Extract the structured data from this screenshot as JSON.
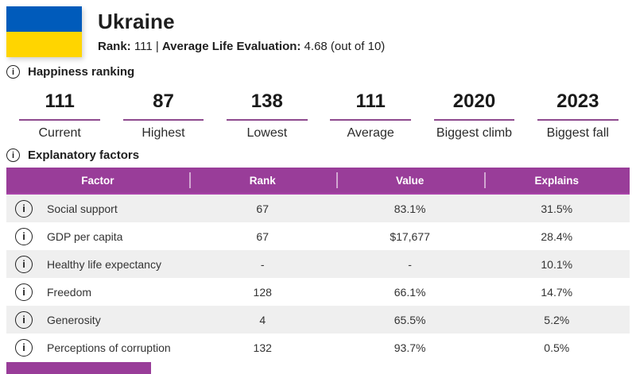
{
  "header": {
    "country": "Ukraine",
    "rank_label": "Rank:",
    "rank_value": " 111 | ",
    "life_eval_label": "Average Life Evaluation:",
    "life_eval_value": " 4.68 (out of 10)"
  },
  "icons": {
    "info_glyph": "i"
  },
  "sections": {
    "ranking_title": "Happiness ranking",
    "factors_title": "Explanatory factors"
  },
  "ranking_stats": [
    {
      "value": "111",
      "label": "Current"
    },
    {
      "value": "87",
      "label": "Highest"
    },
    {
      "value": "138",
      "label": "Lowest"
    },
    {
      "value": "111",
      "label": "Average"
    },
    {
      "value": "2020",
      "label": "Biggest climb"
    },
    {
      "value": "2023",
      "label": "Biggest fall"
    }
  ],
  "factors_table": {
    "columns": [
      "Factor",
      "Rank",
      "Value",
      "Explains"
    ],
    "rows": [
      {
        "factor": "Social support",
        "rank": "67",
        "value": "83.1%",
        "explains": "31.5%"
      },
      {
        "factor": "GDP per capita",
        "rank": "67",
        "value": "$17,677",
        "explains": "28.4%"
      },
      {
        "factor": "Healthy life expectancy",
        "rank": "-",
        "value": "-",
        "explains": "10.1%"
      },
      {
        "factor": "Freedom",
        "rank": "128",
        "value": "66.1%",
        "explains": "14.7%"
      },
      {
        "factor": "Generosity",
        "rank": "4",
        "value": "65.5%",
        "explains": "5.2%"
      },
      {
        "factor": "Perceptions of corruption",
        "rank": "132",
        "value": "93.7%",
        "explains": "0.5%"
      }
    ]
  },
  "colors": {
    "accent_purple": "#993d99",
    "underline_purple": "#8e4a8e",
    "row_alt_gray": "#efefef",
    "flag_blue": "#005BBB",
    "flag_yellow": "#FFD500"
  }
}
